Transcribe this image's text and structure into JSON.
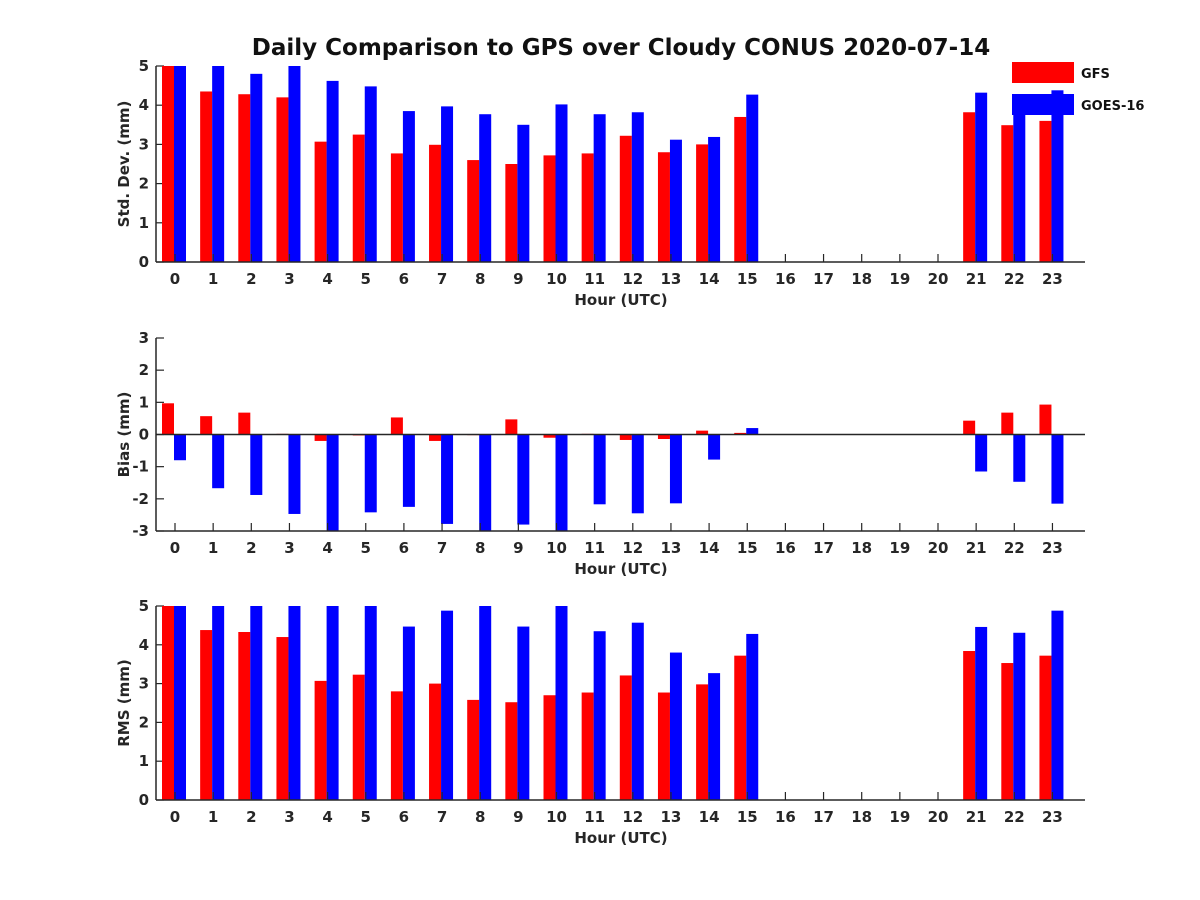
{
  "figure": {
    "title": "Daily Comparison to GPS over Cloudy CONUS 2020-07-14"
  },
  "legend": {
    "position": "top-right",
    "entries": [
      {
        "label": "GFS",
        "color": "#ff0000"
      },
      {
        "label": "GOES-16",
        "color": "#0000ff"
      }
    ]
  },
  "chart_data": [
    {
      "type": "bar",
      "ylabel": "Std. Dev. (mm)",
      "xlabel": "Hour (UTC)",
      "ylim": [
        0,
        5
      ],
      "yticks": [
        0,
        1,
        2,
        3,
        4,
        5
      ],
      "categories": [
        "0",
        "1",
        "2",
        "3",
        "4",
        "5",
        "6",
        "7",
        "8",
        "9",
        "10",
        "11",
        "12",
        "13",
        "14",
        "15",
        "16",
        "17",
        "18",
        "19",
        "20",
        "21",
        "22",
        "23"
      ],
      "series": [
        {
          "name": "GFS",
          "color": "#ff0000",
          "values": [
            5.0,
            4.35,
            4.28,
            4.2,
            3.07,
            3.25,
            2.77,
            2.99,
            2.6,
            2.5,
            2.72,
            2.77,
            3.22,
            2.8,
            3.0,
            3.7,
            null,
            null,
            null,
            null,
            null,
            3.82,
            3.49,
            3.6
          ]
        },
        {
          "name": "GOES-16",
          "color": "#0000ff",
          "values": [
            5.0,
            5.0,
            4.8,
            5.0,
            4.62,
            4.48,
            3.85,
            3.97,
            3.77,
            3.5,
            4.02,
            3.77,
            3.82,
            3.12,
            3.19,
            4.27,
            null,
            null,
            null,
            null,
            null,
            4.32,
            4.04,
            4.38
          ]
        }
      ]
    },
    {
      "type": "bar",
      "ylabel": "Bias (mm)",
      "xlabel": "Hour (UTC)",
      "ylim": [
        -3,
        3
      ],
      "yticks": [
        -3,
        -2,
        -1,
        0,
        1,
        2,
        3
      ],
      "categories": [
        "0",
        "1",
        "2",
        "3",
        "4",
        "5",
        "6",
        "7",
        "8",
        "9",
        "10",
        "11",
        "12",
        "13",
        "14",
        "15",
        "16",
        "17",
        "18",
        "19",
        "20",
        "21",
        "22",
        "23"
      ],
      "series": [
        {
          "name": "GFS",
          "color": "#ff0000",
          "values": [
            0.97,
            0.57,
            0.68,
            0.02,
            -0.2,
            -0.03,
            0.53,
            -0.2,
            -0.02,
            0.47,
            -0.1,
            0.02,
            -0.17,
            -0.14,
            0.12,
            0.05,
            null,
            null,
            null,
            null,
            null,
            0.43,
            0.68,
            0.93
          ]
        },
        {
          "name": "GOES-16",
          "color": "#0000ff",
          "values": [
            -0.8,
            -1.67,
            -1.88,
            -2.47,
            -3.0,
            -2.42,
            -2.25,
            -2.78,
            -3.0,
            -2.8,
            -3.0,
            -2.17,
            -2.45,
            -2.14,
            -0.78,
            0.2,
            null,
            null,
            null,
            null,
            null,
            -1.15,
            -1.47,
            -2.15
          ]
        }
      ]
    },
    {
      "type": "bar",
      "ylabel": "RMS (mm)",
      "xlabel": "Hour (UTC)",
      "ylim": [
        0,
        5
      ],
      "yticks": [
        0,
        1,
        2,
        3,
        4,
        5
      ],
      "categories": [
        "0",
        "1",
        "2",
        "3",
        "4",
        "5",
        "6",
        "7",
        "8",
        "9",
        "10",
        "11",
        "12",
        "13",
        "14",
        "15",
        "16",
        "17",
        "18",
        "19",
        "20",
        "21",
        "22",
        "23"
      ],
      "series": [
        {
          "name": "GFS",
          "color": "#ff0000",
          "values": [
            5.0,
            4.38,
            4.33,
            4.2,
            3.07,
            3.23,
            2.8,
            3.0,
            2.58,
            2.52,
            2.7,
            2.77,
            3.21,
            2.77,
            2.98,
            3.72,
            null,
            null,
            null,
            null,
            null,
            3.84,
            3.53,
            3.72
          ]
        },
        {
          "name": "GOES-16",
          "color": "#0000ff",
          "values": [
            5.0,
            5.0,
            5.0,
            5.0,
            5.0,
            5.0,
            4.47,
            4.88,
            5.0,
            4.47,
            5.0,
            4.35,
            4.57,
            3.8,
            3.27,
            4.28,
            null,
            null,
            null,
            null,
            null,
            4.46,
            4.31,
            4.88
          ]
        }
      ]
    }
  ]
}
